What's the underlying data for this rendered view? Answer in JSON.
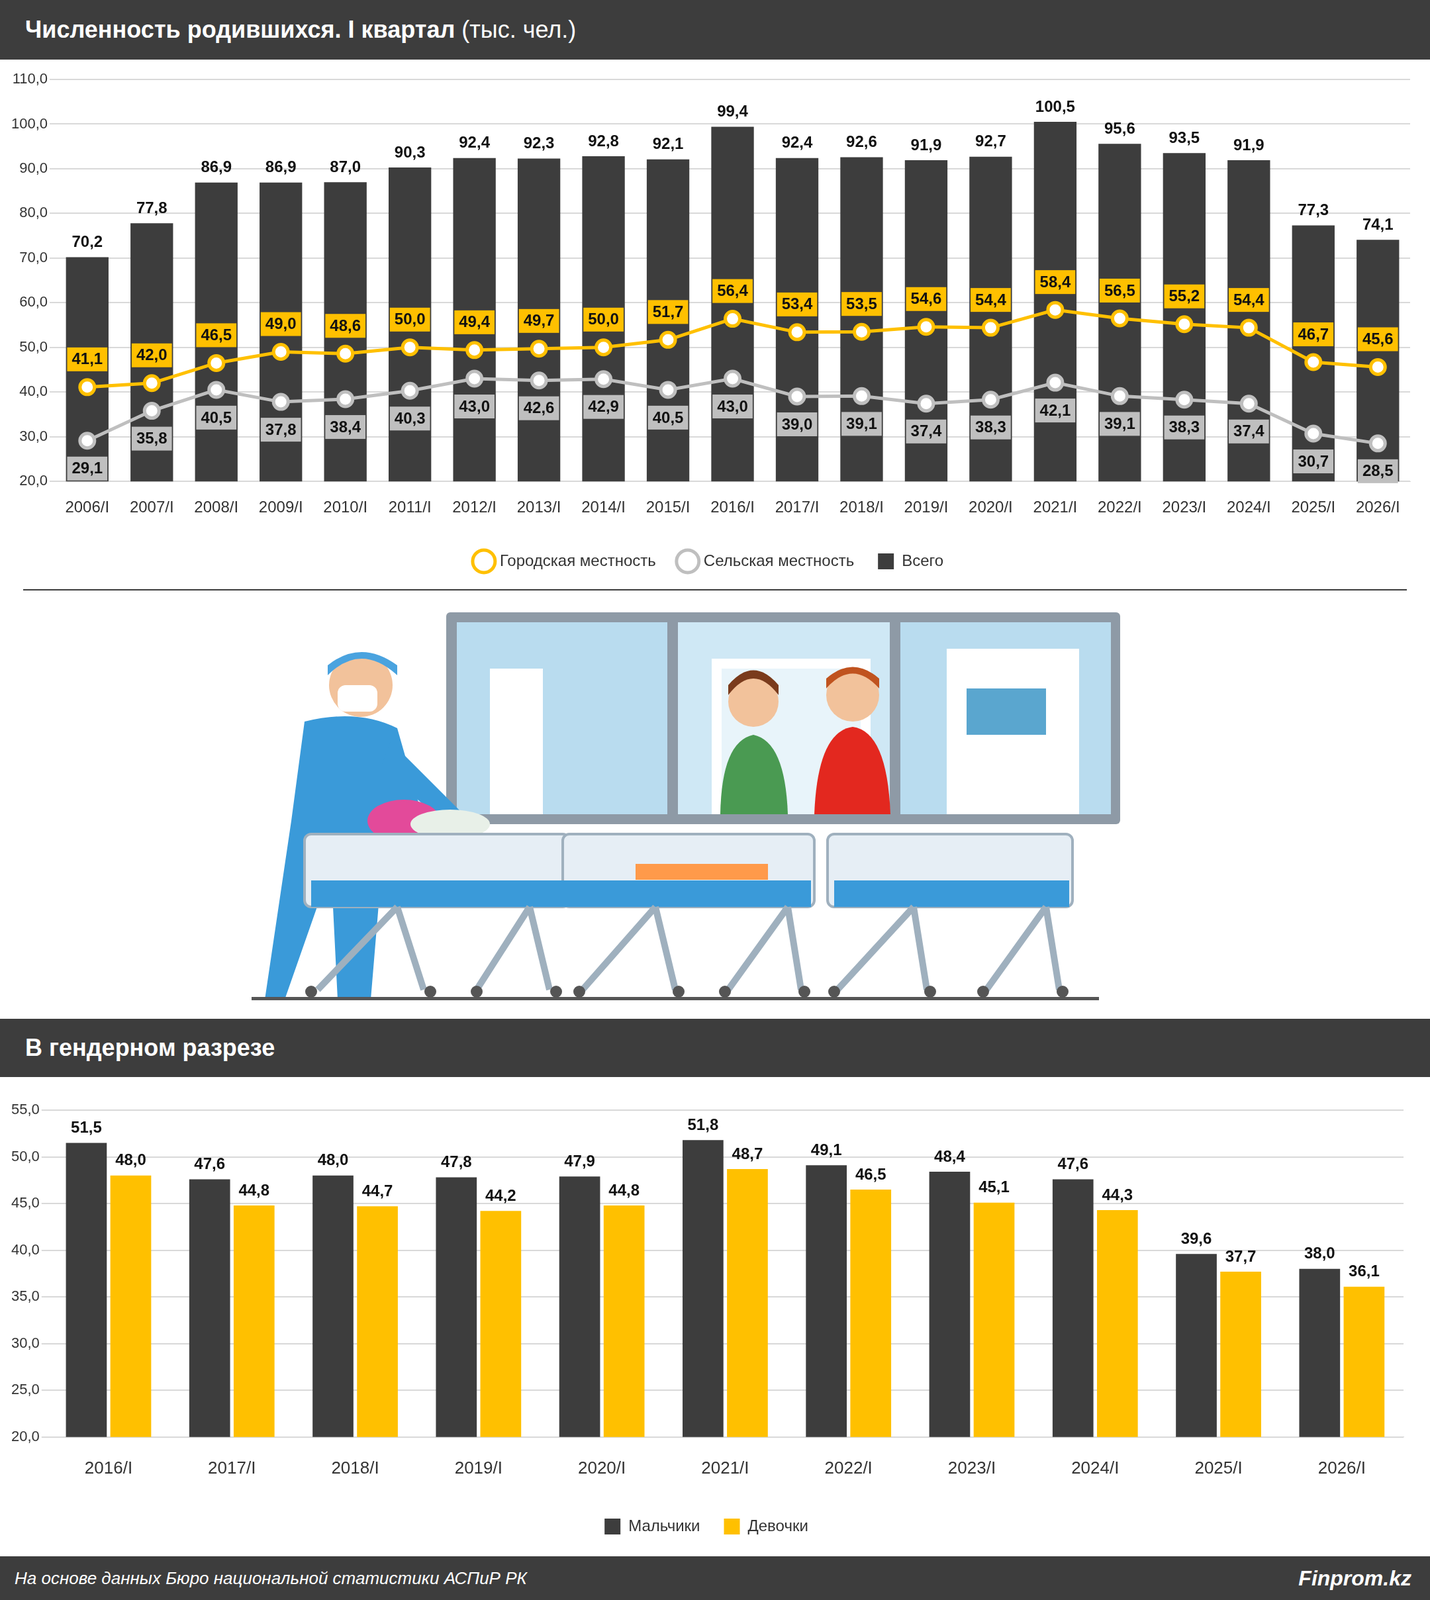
{
  "chart_data": [
    {
      "type": "bar",
      "title": "Численность родившихся. I квартал",
      "subtitle": "(тыс. чел.)",
      "categories": [
        "2006/I",
        "2007/I",
        "2008/I",
        "2009/I",
        "2010/I",
        "2011/I",
        "2012/I",
        "2013/I",
        "2014/I",
        "2015/I",
        "2016/I",
        "2017/I",
        "2018/I",
        "2019/I",
        "2020/I",
        "2021/I",
        "2022/I",
        "2023/I",
        "2024/I",
        "2025/I",
        "2026/I"
      ],
      "series": [
        {
          "name": "Всего",
          "type": "bar",
          "color": "#3d3d3d",
          "values": [
            70.2,
            77.8,
            86.9,
            86.9,
            87.0,
            90.3,
            92.4,
            92.3,
            92.8,
            92.1,
            99.4,
            92.4,
            92.6,
            91.9,
            92.7,
            100.5,
            95.6,
            93.5,
            91.9,
            77.3,
            74.1
          ],
          "value_labels": [
            "70,2",
            "77,8",
            "86,9",
            "86,9",
            "87,0",
            "90,3",
            "92,4",
            "92,3",
            "92,8",
            "92,1",
            "99,4",
            "92,4",
            "92,6",
            "91,9",
            "92,7",
            "100,5",
            "95,6",
            "93,5",
            "91,9",
            "77,3",
            "74,1"
          ]
        },
        {
          "name": "Городская местность",
          "type": "line",
          "color": "#ffc000",
          "marker": "circle",
          "line_style": "solid",
          "values": [
            41.1,
            42.0,
            46.5,
            49.0,
            48.6,
            50.0,
            49.4,
            49.7,
            50.0,
            51.7,
            56.4,
            53.4,
            53.5,
            54.6,
            54.4,
            58.4,
            56.5,
            55.2,
            54.4,
            46.7,
            45.6
          ],
          "value_labels": [
            "41,1",
            "42,0",
            "46,5",
            "49,0",
            "48,6",
            "50,0",
            "49,4",
            "49,7",
            "50,0",
            "51,7",
            "56,4",
            "53,4",
            "53,5",
            "54,6",
            "54,4",
            "58,4",
            "56,5",
            "55,2",
            "54,4",
            "46,7",
            "45,6"
          ]
        },
        {
          "name": "Сельская местность",
          "type": "line",
          "color": "#bfbfbf",
          "marker": "circle",
          "line_style": "solid",
          "values": [
            29.1,
            35.8,
            40.5,
            37.8,
            38.4,
            40.3,
            43.0,
            42.6,
            42.9,
            40.5,
            43.0,
            39.0,
            39.1,
            37.4,
            38.3,
            42.1,
            39.1,
            38.3,
            37.4,
            30.7,
            28.5
          ],
          "value_labels": [
            "29,1",
            "35,8",
            "40,5",
            "37,8",
            "38,4",
            "40,3",
            "43,0",
            "42,6",
            "42,9",
            "40,5",
            "43,0",
            "39,0",
            "39,1",
            "37,4",
            "38,3",
            "42,1",
            "39,1",
            "38,3",
            "37,4",
            "30,7",
            "28,5"
          ]
        }
      ],
      "ylim": [
        20,
        110
      ],
      "yticks": [
        {
          "value": 20,
          "label": "20,0"
        },
        {
          "value": 30,
          "label": "30,0"
        },
        {
          "value": 40,
          "label": "40,0"
        },
        {
          "value": 50,
          "label": "50,0"
        },
        {
          "value": 60,
          "label": "60,0"
        },
        {
          "value": 70,
          "label": "70,0"
        },
        {
          "value": 80,
          "label": "80,0"
        },
        {
          "value": 90,
          "label": "90,0"
        },
        {
          "value": 100,
          "label": "100,0"
        },
        {
          "value": 110,
          "label": "110,0"
        }
      ],
      "grid": true,
      "legend": "bottom",
      "data_labels": true
    },
    {
      "type": "bar",
      "title": "В гендерном разрезе",
      "categories": [
        "2016/I",
        "2017/I",
        "2018/I",
        "2019/I",
        "2020/I",
        "2021/I",
        "2022/I",
        "2023/I",
        "2024/I",
        "2025/I",
        "2026/I"
      ],
      "series": [
        {
          "name": "Мальчики",
          "color": "#3d3d3d",
          "values": [
            51.5,
            47.6,
            48.0,
            47.8,
            47.9,
            51.8,
            49.1,
            48.4,
            47.6,
            39.6,
            38.0
          ],
          "value_labels": [
            "51,5",
            "47,6",
            "48,0",
            "47,8",
            "47,9",
            "51,8",
            "49,1",
            "48,4",
            "47,6",
            "39,6",
            "38,0"
          ]
        },
        {
          "name": "Девочки",
          "color": "#ffc000",
          "values": [
            48.0,
            44.8,
            44.7,
            44.2,
            44.8,
            48.7,
            46.5,
            45.1,
            44.3,
            37.7,
            36.1
          ],
          "value_labels": [
            "48,0",
            "44,8",
            "44,7",
            "44,2",
            "44,8",
            "48,7",
            "46,5",
            "45,1",
            "44,3",
            "37,7",
            "36,1"
          ]
        }
      ],
      "ylim": [
        20,
        55
      ],
      "yticks": [
        {
          "value": 20,
          "label": "20,0"
        },
        {
          "value": 25,
          "label": "25,0"
        },
        {
          "value": 30,
          "label": "30,0"
        },
        {
          "value": 35,
          "label": "35,0"
        },
        {
          "value": 40,
          "label": "40,0"
        },
        {
          "value": 45,
          "label": "45,0"
        },
        {
          "value": 50,
          "label": "50,0"
        },
        {
          "value": 55,
          "label": "55,0"
        }
      ],
      "grid": true,
      "legend": "bottom",
      "data_labels": true
    }
  ],
  "footer": {
    "source": "На основе данных Бюро национальной статистики АСПиР РК",
    "brand": "Finprom.kz"
  }
}
